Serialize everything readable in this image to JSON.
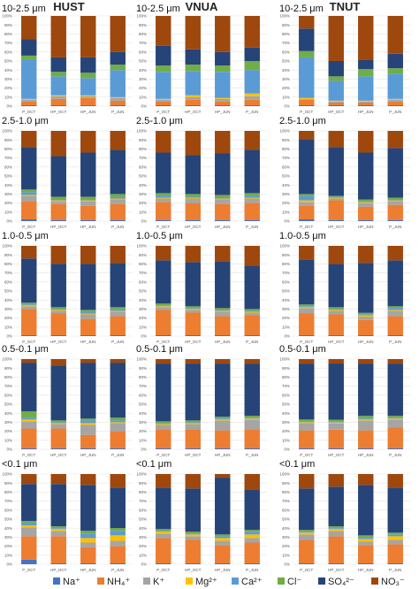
{
  "chart_data": {
    "type": "bar",
    "stacked": true,
    "normalized": true,
    "y_ticks": [
      "0%",
      "10%",
      "20%",
      "30%",
      "40%",
      "50%",
      "60%",
      "70%",
      "80%",
      "90%",
      "100%"
    ],
    "ylim": [
      0,
      100
    ],
    "grid": true,
    "legend_position": "bottom",
    "categories": [
      "P_OCT",
      "HP_OCT",
      "HP_JUN",
      "P_JUN"
    ],
    "components": [
      {
        "name": "Na⁺",
        "color": "#4472c4"
      },
      {
        "name": "NH₄⁺",
        "color": "#ed7d31"
      },
      {
        "name": "K⁺",
        "color": "#a5a5a5"
      },
      {
        "name": "Mg²⁺",
        "color": "#ffc000"
      },
      {
        "name": "Ca²⁺",
        "color": "#5b9bd5"
      },
      {
        "name": "Cl⁻",
        "color": "#70ad47"
      },
      {
        "name": "SO₄²⁻",
        "color": "#264478"
      },
      {
        "name": "NO₃⁻",
        "color": "#9e480e"
      }
    ],
    "sites": [
      "HUST",
      "VNUA",
      "TNUT"
    ],
    "size_labels": [
      "10-2.5 μm",
      "2.5-1.0 μm",
      "1.0-0.5 μm",
      "0.5-0.1 μm",
      "<0.1 μm"
    ],
    "panels": [
      [
        [
          [
            1,
            4,
            2,
            1,
            44,
            4,
            18,
            26
          ],
          [
            1,
            7,
            3,
            1,
            21,
            5,
            16,
            46
          ],
          [
            1,
            8,
            2,
            1,
            19,
            6,
            17,
            46
          ],
          [
            1,
            5,
            3,
            1,
            30,
            6,
            14,
            40
          ]
        ],
        [
          [
            1,
            4,
            2,
            1,
            30,
            7,
            22,
            33
          ],
          [
            1,
            6,
            3,
            2,
            27,
            7,
            17,
            37
          ],
          [
            1,
            4,
            3,
            1,
            29,
            7,
            15,
            40
          ],
          [
            1,
            6,
            4,
            3,
            26,
            10,
            15,
            35
          ]
        ],
        [
          [
            1,
            6,
            1,
            1,
            45,
            7,
            25,
            14
          ],
          [
            1,
            3,
            1,
            1,
            22,
            5,
            17,
            50
          ],
          [
            1,
            3,
            1,
            1,
            27,
            8,
            10,
            49
          ],
          [
            1,
            4,
            2,
            1,
            28,
            6,
            16,
            42
          ]
        ]
      ],
      [
        [
          [
            2,
            20,
            6,
            1,
            3,
            3,
            47,
            18
          ],
          [
            1,
            18,
            3,
            1,
            1,
            3,
            45,
            28
          ],
          [
            1,
            16,
            5,
            1,
            1,
            3,
            49,
            24
          ],
          [
            1,
            18,
            5,
            1,
            2,
            3,
            49,
            21
          ]
        ],
        [
          [
            1,
            20,
            4,
            1,
            2,
            3,
            45,
            24
          ],
          [
            1,
            19,
            5,
            1,
            1,
            3,
            43,
            27
          ],
          [
            1,
            18,
            5,
            1,
            1,
            3,
            46,
            25
          ],
          [
            1,
            19,
            5,
            1,
            2,
            3,
            48,
            21
          ]
        ],
        [
          [
            2,
            15,
            4,
            2,
            5,
            2,
            61,
            9
          ],
          [
            1,
            22,
            2,
            1,
            1,
            1,
            54,
            18
          ],
          [
            1,
            15,
            4,
            1,
            1,
            2,
            52,
            24
          ],
          [
            1,
            17,
            4,
            1,
            1,
            2,
            55,
            19
          ]
        ]
      ],
      [
        [
          [
            1,
            29,
            3,
            1,
            1,
            2,
            49,
            14
          ],
          [
            1,
            24,
            3,
            1,
            1,
            2,
            48,
            20
          ],
          [
            1,
            18,
            5,
            1,
            2,
            2,
            51,
            20
          ],
          [
            1,
            21,
            5,
            1,
            2,
            2,
            49,
            19
          ]
        ],
        [
          [
            1,
            28,
            3,
            1,
            1,
            2,
            48,
            16
          ],
          [
            1,
            25,
            3,
            1,
            1,
            2,
            49,
            18
          ],
          [
            1,
            21,
            5,
            1,
            1,
            2,
            52,
            17
          ],
          [
            1,
            22,
            3,
            1,
            1,
            2,
            48,
            22
          ]
        ],
        [
          [
            1,
            24,
            6,
            1,
            1,
            2,
            50,
            15
          ],
          [
            1,
            23,
            4,
            1,
            1,
            2,
            48,
            20
          ],
          [
            1,
            17,
            4,
            1,
            1,
            2,
            56,
            19
          ],
          [
            1,
            21,
            6,
            1,
            2,
            2,
            51,
            16
          ]
        ]
      ],
      [
        [
          [
            1,
            22,
            8,
            2,
            2,
            7,
            54,
            4
          ],
          [
            1,
            22,
            5,
            1,
            1,
            2,
            61,
            7
          ],
          [
            1,
            15,
            11,
            2,
            3,
            2,
            62,
            4
          ],
          [
            1,
            19,
            9,
            1,
            2,
            3,
            61,
            4
          ]
        ],
        [
          [
            1,
            21,
            5,
            1,
            1,
            2,
            64,
            5
          ],
          [
            1,
            21,
            6,
            1,
            1,
            2,
            63,
            5
          ],
          [
            1,
            20,
            11,
            1,
            1,
            2,
            59,
            5
          ],
          [
            1,
            21,
            11,
            1,
            1,
            2,
            58,
            5
          ]
        ],
        [
          [
            1,
            20,
            8,
            1,
            1,
            2,
            62,
            5
          ],
          [
            1,
            21,
            7,
            1,
            1,
            2,
            63,
            5
          ],
          [
            1,
            20,
            11,
            1,
            1,
            3,
            58,
            5
          ],
          [
            1,
            23,
            9,
            1,
            1,
            2,
            58,
            5
          ]
        ]
      ],
      [
        [
          [
            5,
            26,
            10,
            2,
            3,
            2,
            41,
            11
          ],
          [
            1,
            30,
            6,
            2,
            1,
            2,
            47,
            11
          ],
          [
            1,
            18,
            5,
            5,
            5,
            3,
            51,
            12
          ],
          [
            1,
            19,
            6,
            6,
            5,
            3,
            45,
            15
          ]
        ],
        [
          [
            1,
            28,
            5,
            2,
            1,
            2,
            46,
            15
          ],
          [
            1,
            26,
            4,
            2,
            1,
            2,
            48,
            16
          ],
          [
            1,
            20,
            5,
            3,
            2,
            2,
            63,
            4
          ],
          [
            1,
            23,
            5,
            4,
            3,
            2,
            45,
            17
          ]
        ],
        [
          [
            1,
            26,
            6,
            2,
            1,
            2,
            46,
            16
          ],
          [
            1,
            30,
            6,
            2,
            1,
            2,
            44,
            14
          ],
          [
            1,
            20,
            4,
            3,
            2,
            2,
            56,
            12
          ],
          [
            1,
            21,
            5,
            4,
            2,
            2,
            50,
            15
          ]
        ]
      ]
    ]
  }
}
